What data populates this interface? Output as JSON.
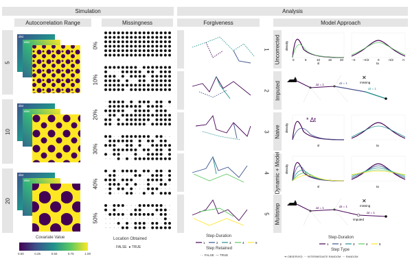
{
  "headers": {
    "simulation": "Simulation",
    "analysis": "Analysis"
  },
  "columns": {
    "autocorr": "Autocorrelation Range",
    "missing": "Missingness",
    "forgiveness": "Forgiveness",
    "model": "Model Approach"
  },
  "autocorr_rows": [
    "5",
    "10",
    "20"
  ],
  "map_layer_labels": [
    "dist",
    "elev"
  ],
  "missing_rows": [
    "0%",
    "10%",
    "20%",
    "30%",
    "40%",
    "50%"
  ],
  "forgive_rows": [
    "1",
    "2",
    "3",
    "4",
    "5"
  ],
  "model_rows": [
    "Uncorrected",
    "Imputed",
    "Naive",
    "Dynamic + Model",
    "Multistep"
  ],
  "annotations": {
    "missing": "missing",
    "imputed": "imputed",
    "delta_t": "* Δt",
    "step_label": "Δt = 1"
  },
  "density_axes": {
    "ylabel": "density",
    "sl_label": "sl",
    "ta_label": "ta",
    "sl_ticks": [
      "0",
      "5",
      "10",
      "15",
      "20"
    ],
    "ta_ticks": [
      "−π",
      "−π/2",
      "0",
      "π/2",
      "π"
    ],
    "y_ticks": [
      "0.0",
      "0.1",
      "0.2",
      "0.3",
      "0.4"
    ]
  },
  "legends": {
    "covariate": {
      "title": "Covariate Value",
      "ticks": [
        "0.00",
        "0.25",
        "0.50",
        "0.75",
        "1.00"
      ]
    },
    "location": {
      "title": "Location Obtained",
      "items": [
        "FALSE",
        "TRUE"
      ]
    },
    "step_duration": {
      "title": "Step-Duration",
      "items": [
        "1",
        "2",
        "3",
        "4",
        "5"
      ],
      "colors": [
        "#440154",
        "#3b528b",
        "#21918c",
        "#5ec962",
        "#fde725"
      ]
    },
    "step_retained": {
      "title": "Step Retained",
      "items": [
        "FALSE",
        "TRUE"
      ]
    },
    "step_duration2": {
      "title": "Step-Duration",
      "items": [
        "1",
        "2",
        "3",
        "4",
        "5"
      ]
    },
    "step_type": {
      "title": "Step Type",
      "items": [
        "OBSERVED",
        "INTERMEDIATE RANDOM",
        "RANDOM"
      ]
    }
  }
}
